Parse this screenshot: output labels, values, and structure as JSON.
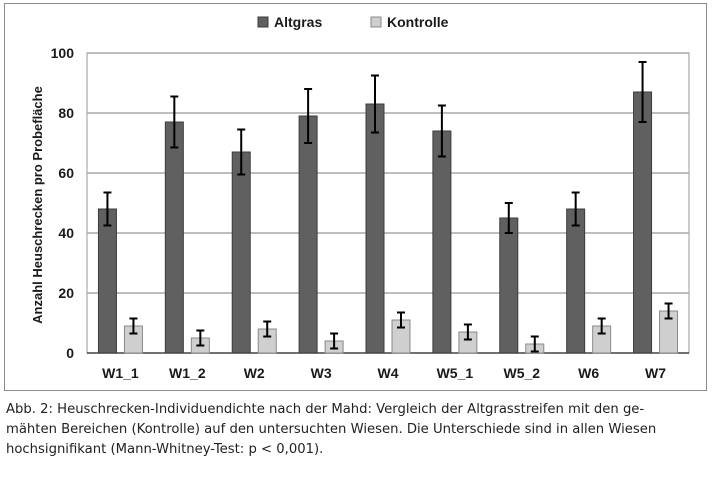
{
  "chart_data": {
    "type": "bar",
    "title": "",
    "xlabel": "",
    "ylabel": "Anzahl Heuschrecken pro Probefläche",
    "ylim": [
      0,
      100
    ],
    "yticks": [
      0,
      20,
      40,
      60,
      80,
      100
    ],
    "grid": true,
    "legend_position": "top-center",
    "categories": [
      "W1_1",
      "W1_2",
      "W2",
      "W3",
      "W4",
      "W5_1",
      "W5_2",
      "W6",
      "W7"
    ],
    "series": [
      {
        "name": "Altgras",
        "color": "#606060",
        "values": [
          48,
          77,
          67,
          79,
          83,
          74,
          45,
          48,
          87
        ],
        "errors": [
          5.5,
          8.5,
          7.5,
          9,
          9.5,
          8.5,
          5,
          5.5,
          10
        ]
      },
      {
        "name": "Kontrolle",
        "color": "#cfcfcf",
        "values": [
          9,
          5,
          8,
          4,
          11,
          7,
          3,
          9,
          14
        ],
        "errors": [
          2.5,
          2.5,
          2.5,
          2.5,
          2.5,
          2.5,
          2.5,
          2.5,
          2.5
        ]
      }
    ]
  },
  "caption": {
    "lines": [
      "Abb. 2: Heuschrecken-Individuendichte nach der Mahd: Vergleich der Altgrasstreifen mit den ge-",
      "mähten Bereichen (Kontrolle) auf den untersuchten Wiesen. Die Unterschiede sind in allen Wiesen",
      "hochsignifikant (Mann-Whitney-Test: p < 0,001)."
    ]
  }
}
